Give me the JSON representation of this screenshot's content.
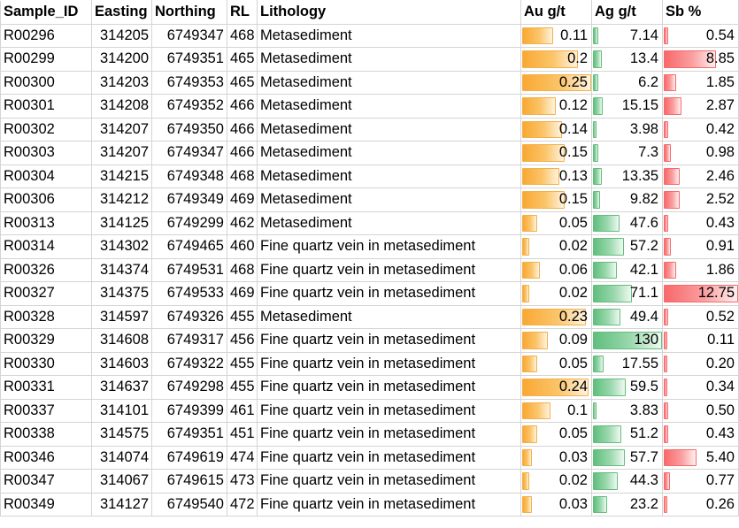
{
  "headers": [
    "Sample_ID",
    "Easting",
    "Northing",
    "RL",
    "Lithology",
    "Au g/t",
    "Ag g/t",
    "Sb %"
  ],
  "bar_max": {
    "au": 0.25,
    "ag": 130,
    "sb": 12.75
  },
  "colors": {
    "au_bar": "#f9a833",
    "ag_bar": "#63be7b",
    "sb_bar": "#f8696b",
    "grid": "#d4d4d4"
  },
  "rows": [
    {
      "id": "R00296",
      "easting": "314205",
      "northing": "6749347",
      "rl": "468",
      "lith": "Metasediment",
      "au": "0.11",
      "ag": "7.14",
      "sb": "0.54"
    },
    {
      "id": "R00299",
      "easting": "314200",
      "northing": "6749351",
      "rl": "465",
      "lith": "Metasediment",
      "au": "0.2",
      "ag": "13.4",
      "sb": "8.85"
    },
    {
      "id": "R00300",
      "easting": "314203",
      "northing": "6749353",
      "rl": "465",
      "lith": "Metasediment",
      "au": "0.25",
      "ag": "6.2",
      "sb": "1.85"
    },
    {
      "id": "R00301",
      "easting": "314208",
      "northing": "6749352",
      "rl": "466",
      "lith": "Metasediment",
      "au": "0.12",
      "ag": "15.15",
      "sb": "2.87"
    },
    {
      "id": "R00302",
      "easting": "314207",
      "northing": "6749350",
      "rl": "466",
      "lith": "Metasediment",
      "au": "0.14",
      "ag": "3.98",
      "sb": "0.42"
    },
    {
      "id": "R00303",
      "easting": "314207",
      "northing": "6749347",
      "rl": "466",
      "lith": "Metasediment",
      "au": "0.15",
      "ag": "7.3",
      "sb": "0.98"
    },
    {
      "id": "R00304",
      "easting": "314215",
      "northing": "6749348",
      "rl": "468",
      "lith": "Metasediment",
      "au": "0.13",
      "ag": "13.35",
      "sb": "2.46"
    },
    {
      "id": "R00306",
      "easting": "314212",
      "northing": "6749349",
      "rl": "469",
      "lith": "Metasediment",
      "au": "0.15",
      "ag": "9.82",
      "sb": "2.52"
    },
    {
      "id": "R00313",
      "easting": "314125",
      "northing": "6749299",
      "rl": "462",
      "lith": "Metasediment",
      "au": "0.05",
      "ag": "47.6",
      "sb": "0.43"
    },
    {
      "id": "R00314",
      "easting": "314302",
      "northing": "6749465",
      "rl": "460",
      "lith": "Fine quartz vein in metasediment",
      "au": "0.02",
      "ag": "57.2",
      "sb": "0.91"
    },
    {
      "id": "R00326",
      "easting": "314374",
      "northing": "6749531",
      "rl": "468",
      "lith": "Fine quartz vein in metasediment",
      "au": "0.06",
      "ag": "42.1",
      "sb": "1.86"
    },
    {
      "id": "R00327",
      "easting": "314375",
      "northing": "6749533",
      "rl": "469",
      "lith": "Fine quartz vein in metasediment",
      "au": "0.02",
      "ag": "71.1",
      "sb": "12.75"
    },
    {
      "id": "R00328",
      "easting": "314597",
      "northing": "6749326",
      "rl": "455",
      "lith": "Metasediment",
      "au": "0.23",
      "ag": "49.4",
      "sb": "0.52"
    },
    {
      "id": "R00329",
      "easting": "314608",
      "northing": "6749317",
      "rl": "456",
      "lith": "Fine quartz vein in metasediment",
      "au": "0.09",
      "ag": "130",
      "sb": "0.11"
    },
    {
      "id": "R00330",
      "easting": "314603",
      "northing": "6749322",
      "rl": "455",
      "lith": "Fine quartz vein in metasediment",
      "au": "0.05",
      "ag": "17.55",
      "sb": "0.20"
    },
    {
      "id": "R00331",
      "easting": "314637",
      "northing": "6749298",
      "rl": "455",
      "lith": "Fine quartz vein in metasediment",
      "au": "0.24",
      "ag": "59.5",
      "sb": "0.34"
    },
    {
      "id": "R00337",
      "easting": "314101",
      "northing": "6749399",
      "rl": "461",
      "lith": "Fine quartz vein in metasediment",
      "au": "0.1",
      "ag": "3.83",
      "sb": "0.50"
    },
    {
      "id": "R00338",
      "easting": "314575",
      "northing": "6749351",
      "rl": "451",
      "lith": "Fine quartz vein in metasediment",
      "au": "0.05",
      "ag": "51.2",
      "sb": "0.43"
    },
    {
      "id": "R00346",
      "easting": "314074",
      "northing": "6749619",
      "rl": "474",
      "lith": "Fine quartz vein in metasediment",
      "au": "0.03",
      "ag": "57.7",
      "sb": "5.40"
    },
    {
      "id": "R00347",
      "easting": "314067",
      "northing": "6749615",
      "rl": "473",
      "lith": "Fine quartz vein in metasediment",
      "au": "0.02",
      "ag": "44.3",
      "sb": "0.77"
    },
    {
      "id": "R00349",
      "easting": "314127",
      "northing": "6749540",
      "rl": "472",
      "lith": "Fine quartz vein in metasediment",
      "au": "0.03",
      "ag": "23.2",
      "sb": "0.26"
    }
  ]
}
